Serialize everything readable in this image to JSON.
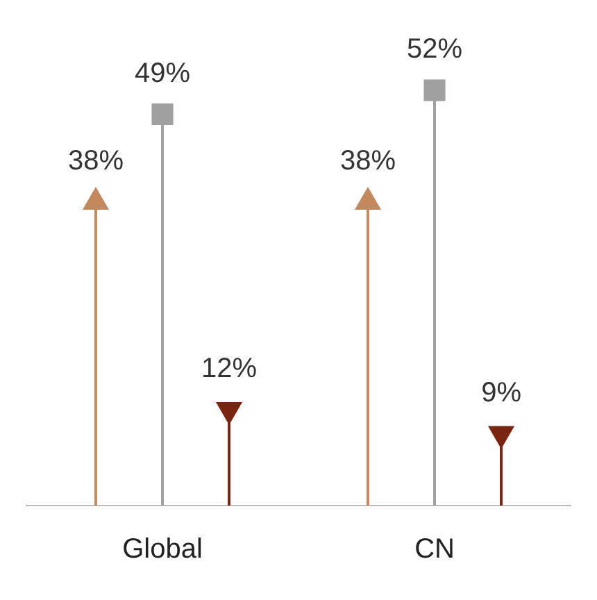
{
  "chart_data": {
    "type": "lollipop",
    "categories": [
      "Global",
      "CN"
    ],
    "series": [
      {
        "color": "#c4885a",
        "marker": "triangle",
        "values": [
          38,
          38
        ],
        "value_labels": [
          "38%",
          "38%"
        ]
      },
      {
        "color": "#a0a0a0",
        "marker": "square",
        "values": [
          49,
          52
        ],
        "value_labels": [
          "49%",
          "52%"
        ]
      },
      {
        "color": "#7a2412",
        "marker": "triangle-down",
        "values": [
          12,
          9
        ],
        "value_labels": [
          "12%",
          "9%"
        ]
      }
    ],
    "legend": false
  }
}
